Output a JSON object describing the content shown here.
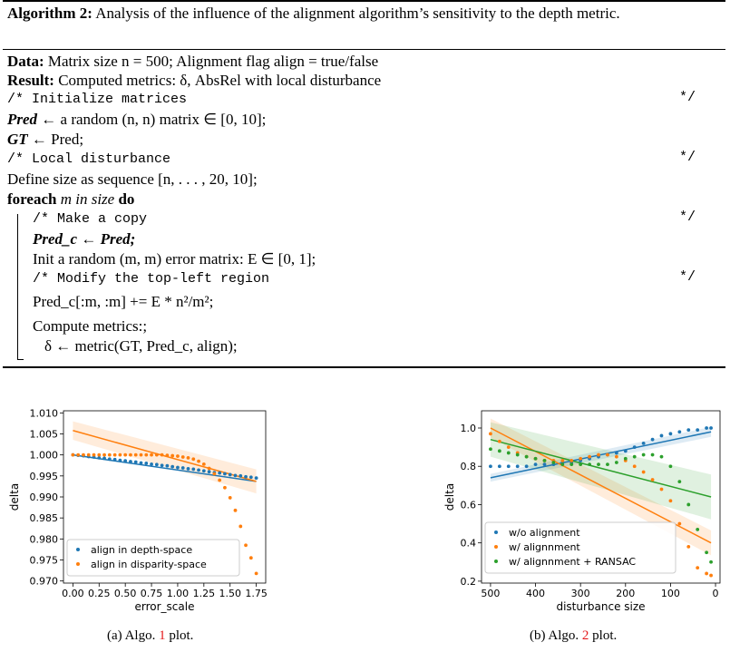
{
  "algorithm": {
    "title_bold": "Algorithm 2:",
    "title_text": "Analysis of the influence of the alignment algorithm’s sensitivity to the depth metric.",
    "data_label": "Data:",
    "data_text": "Matrix size n = 500; Alignment flag align = true/false",
    "result_label": "Result:",
    "result_text": "Computed metrics: δ, AbsRel with local disturbance",
    "c1": "/* Initialize matrices",
    "pred_sym": "Pred",
    "l_pred": "← a random (n, n) matrix ∈ [0, 10];",
    "gt_sym": "GT",
    "l_gt": "← Pred;",
    "c2": "/* Local disturbance",
    "l_define": "Define size as sequence [n, . . . , 20, 10];",
    "foreach_kw": "foreach",
    "foreach_mid": "m in size",
    "do_kw": "do",
    "c3": "/* Make a copy",
    "l_copy": "Pred_c ← Pred;",
    "l_init": "Init a random (m, m) error matrix: E ∈ [0, 1];",
    "c4": "/* Modify the top-left region",
    "l_modify": "Pred_c[:m, :m] += E * n²/m²;",
    "l_compute": "Compute metrics:;",
    "l_delta": "δ ← metric(GT, Pred_c, align);",
    "comment_end": "*/"
  },
  "captions": {
    "a_prefix": "(a) Algo.",
    "a_num": "1",
    "a_suffix": "plot.",
    "b_prefix": "(b) Algo.",
    "b_num": "2",
    "b_suffix": "plot."
  },
  "chart_data": [
    {
      "type": "scatter",
      "xlabel": "error_scale",
      "ylabel": "delta",
      "xlim": [
        -0.09,
        1.84
      ],
      "ylim": [
        0.9695,
        1.0105
      ],
      "xticks": [
        "0.00",
        "0.25",
        "0.50",
        "0.75",
        "1.00",
        "1.25",
        "1.50",
        "1.75"
      ],
      "yticks": [
        "0.970",
        "0.975",
        "0.980",
        "0.985",
        "0.990",
        "0.995",
        "1.000",
        "1.005",
        "1.010"
      ],
      "legend_position": "bottom-left",
      "series": [
        {
          "name": "align in depth-space",
          "color": "#1f77b4",
          "x": [
            0,
            0.05,
            0.1,
            0.15,
            0.2,
            0.25,
            0.3,
            0.35,
            0.4,
            0.45,
            0.5,
            0.55,
            0.6,
            0.65,
            0.7,
            0.75,
            0.8,
            0.85,
            0.9,
            0.95,
            1.0,
            1.05,
            1.1,
            1.15,
            1.2,
            1.25,
            1.3,
            1.35,
            1.4,
            1.45,
            1.5,
            1.55,
            1.6,
            1.65,
            1.7,
            1.75
          ],
          "y": [
            1.0,
            0.9999,
            0.9998,
            0.9996,
            0.9995,
            0.9993,
            0.9992,
            0.999,
            0.9989,
            0.9987,
            0.9986,
            0.9984,
            0.9983,
            0.9981,
            0.998,
            0.9978,
            0.9977,
            0.9975,
            0.9974,
            0.9972,
            0.997,
            0.9969,
            0.9967,
            0.9966,
            0.9964,
            0.9962,
            0.996,
            0.9958,
            0.9957,
            0.9955,
            0.9953,
            0.9951,
            0.995,
            0.9948,
            0.9947,
            0.9945
          ],
          "fit": [
            1.0,
            0.9937
          ]
        },
        {
          "name": "align in disparity-space",
          "color": "#ff7f0e",
          "x": [
            0,
            0.05,
            0.1,
            0.15,
            0.2,
            0.25,
            0.3,
            0.35,
            0.4,
            0.45,
            0.5,
            0.55,
            0.6,
            0.65,
            0.7,
            0.75,
            0.8,
            0.85,
            0.9,
            0.95,
            1.0,
            1.05,
            1.1,
            1.15,
            1.2,
            1.25,
            1.3,
            1.35,
            1.4,
            1.45,
            1.5,
            1.55,
            1.6,
            1.65,
            1.7,
            1.75
          ],
          "y": [
            1.0,
            1.0,
            1.0,
            1.0,
            1.0,
            1.0,
            1.0,
            1.0,
            1.0,
            1.0,
            1.0,
            1.0,
            1.0,
            1.0,
            1.0,
            1.0,
            1.0,
            1.0,
            0.9999,
            0.9998,
            0.9997,
            0.9995,
            0.9993,
            0.999,
            0.9985,
            0.9978,
            0.9968,
            0.9955,
            0.994,
            0.9922,
            0.9898,
            0.9868,
            0.983,
            0.9785,
            0.9755,
            0.9718
          ],
          "fit": [
            1.0058,
            0.9937
          ]
        }
      ]
    },
    {
      "type": "scatter",
      "xlabel": "disturbance size",
      "ylabel": "delta",
      "xlim": [
        520,
        -10
      ],
      "ylim": [
        0.19,
        1.09
      ],
      "xticks": [
        "500",
        "400",
        "300",
        "200",
        "100",
        "0"
      ],
      "yticks": [
        "0.2",
        "0.4",
        "0.6",
        "0.8",
        "1.0"
      ],
      "legend_position": "bottom-left",
      "series": [
        {
          "name": "w/o alignment",
          "color": "#1f77b4",
          "x": [
            500,
            480,
            460,
            440,
            420,
            400,
            380,
            360,
            340,
            320,
            300,
            280,
            260,
            240,
            220,
            200,
            180,
            160,
            140,
            120,
            100,
            80,
            60,
            40,
            20,
            10
          ],
          "y": [
            0.8,
            0.8,
            0.8,
            0.8,
            0.8,
            0.81,
            0.81,
            0.81,
            0.82,
            0.82,
            0.83,
            0.84,
            0.85,
            0.86,
            0.87,
            0.88,
            0.9,
            0.92,
            0.94,
            0.96,
            0.97,
            0.98,
            0.99,
            0.99,
            1.0,
            1.0
          ],
          "fit": [
            0.74,
            0.98
          ]
        },
        {
          "name": "w/ alignnment",
          "color": "#ff7f0e",
          "x": [
            500,
            480,
            460,
            440,
            420,
            400,
            380,
            360,
            340,
            320,
            300,
            280,
            260,
            240,
            220,
            200,
            180,
            160,
            140,
            120,
            100,
            80,
            60,
            40,
            20,
            10
          ],
          "y": [
            0.97,
            0.93,
            0.9,
            0.87,
            0.85,
            0.84,
            0.83,
            0.83,
            0.83,
            0.83,
            0.84,
            0.85,
            0.86,
            0.86,
            0.85,
            0.83,
            0.8,
            0.77,
            0.73,
            0.68,
            0.62,
            0.5,
            0.38,
            0.27,
            0.24,
            0.23
          ],
          "fit": [
            1.0,
            0.4
          ]
        },
        {
          "name": "w/ alignnment + RANSAC",
          "color": "#2ca02c",
          "x": [
            500,
            480,
            460,
            440,
            420,
            400,
            380,
            360,
            340,
            320,
            300,
            280,
            260,
            240,
            220,
            200,
            180,
            160,
            140,
            120,
            100,
            80,
            60,
            40,
            20,
            10
          ],
          "y": [
            0.89,
            0.88,
            0.87,
            0.86,
            0.85,
            0.84,
            0.83,
            0.82,
            0.81,
            0.81,
            0.81,
            0.81,
            0.81,
            0.81,
            0.82,
            0.84,
            0.85,
            0.86,
            0.86,
            0.85,
            0.8,
            0.72,
            0.6,
            0.47,
            0.35,
            0.3
          ],
          "fit": [
            0.94,
            0.64
          ]
        }
      ]
    }
  ]
}
